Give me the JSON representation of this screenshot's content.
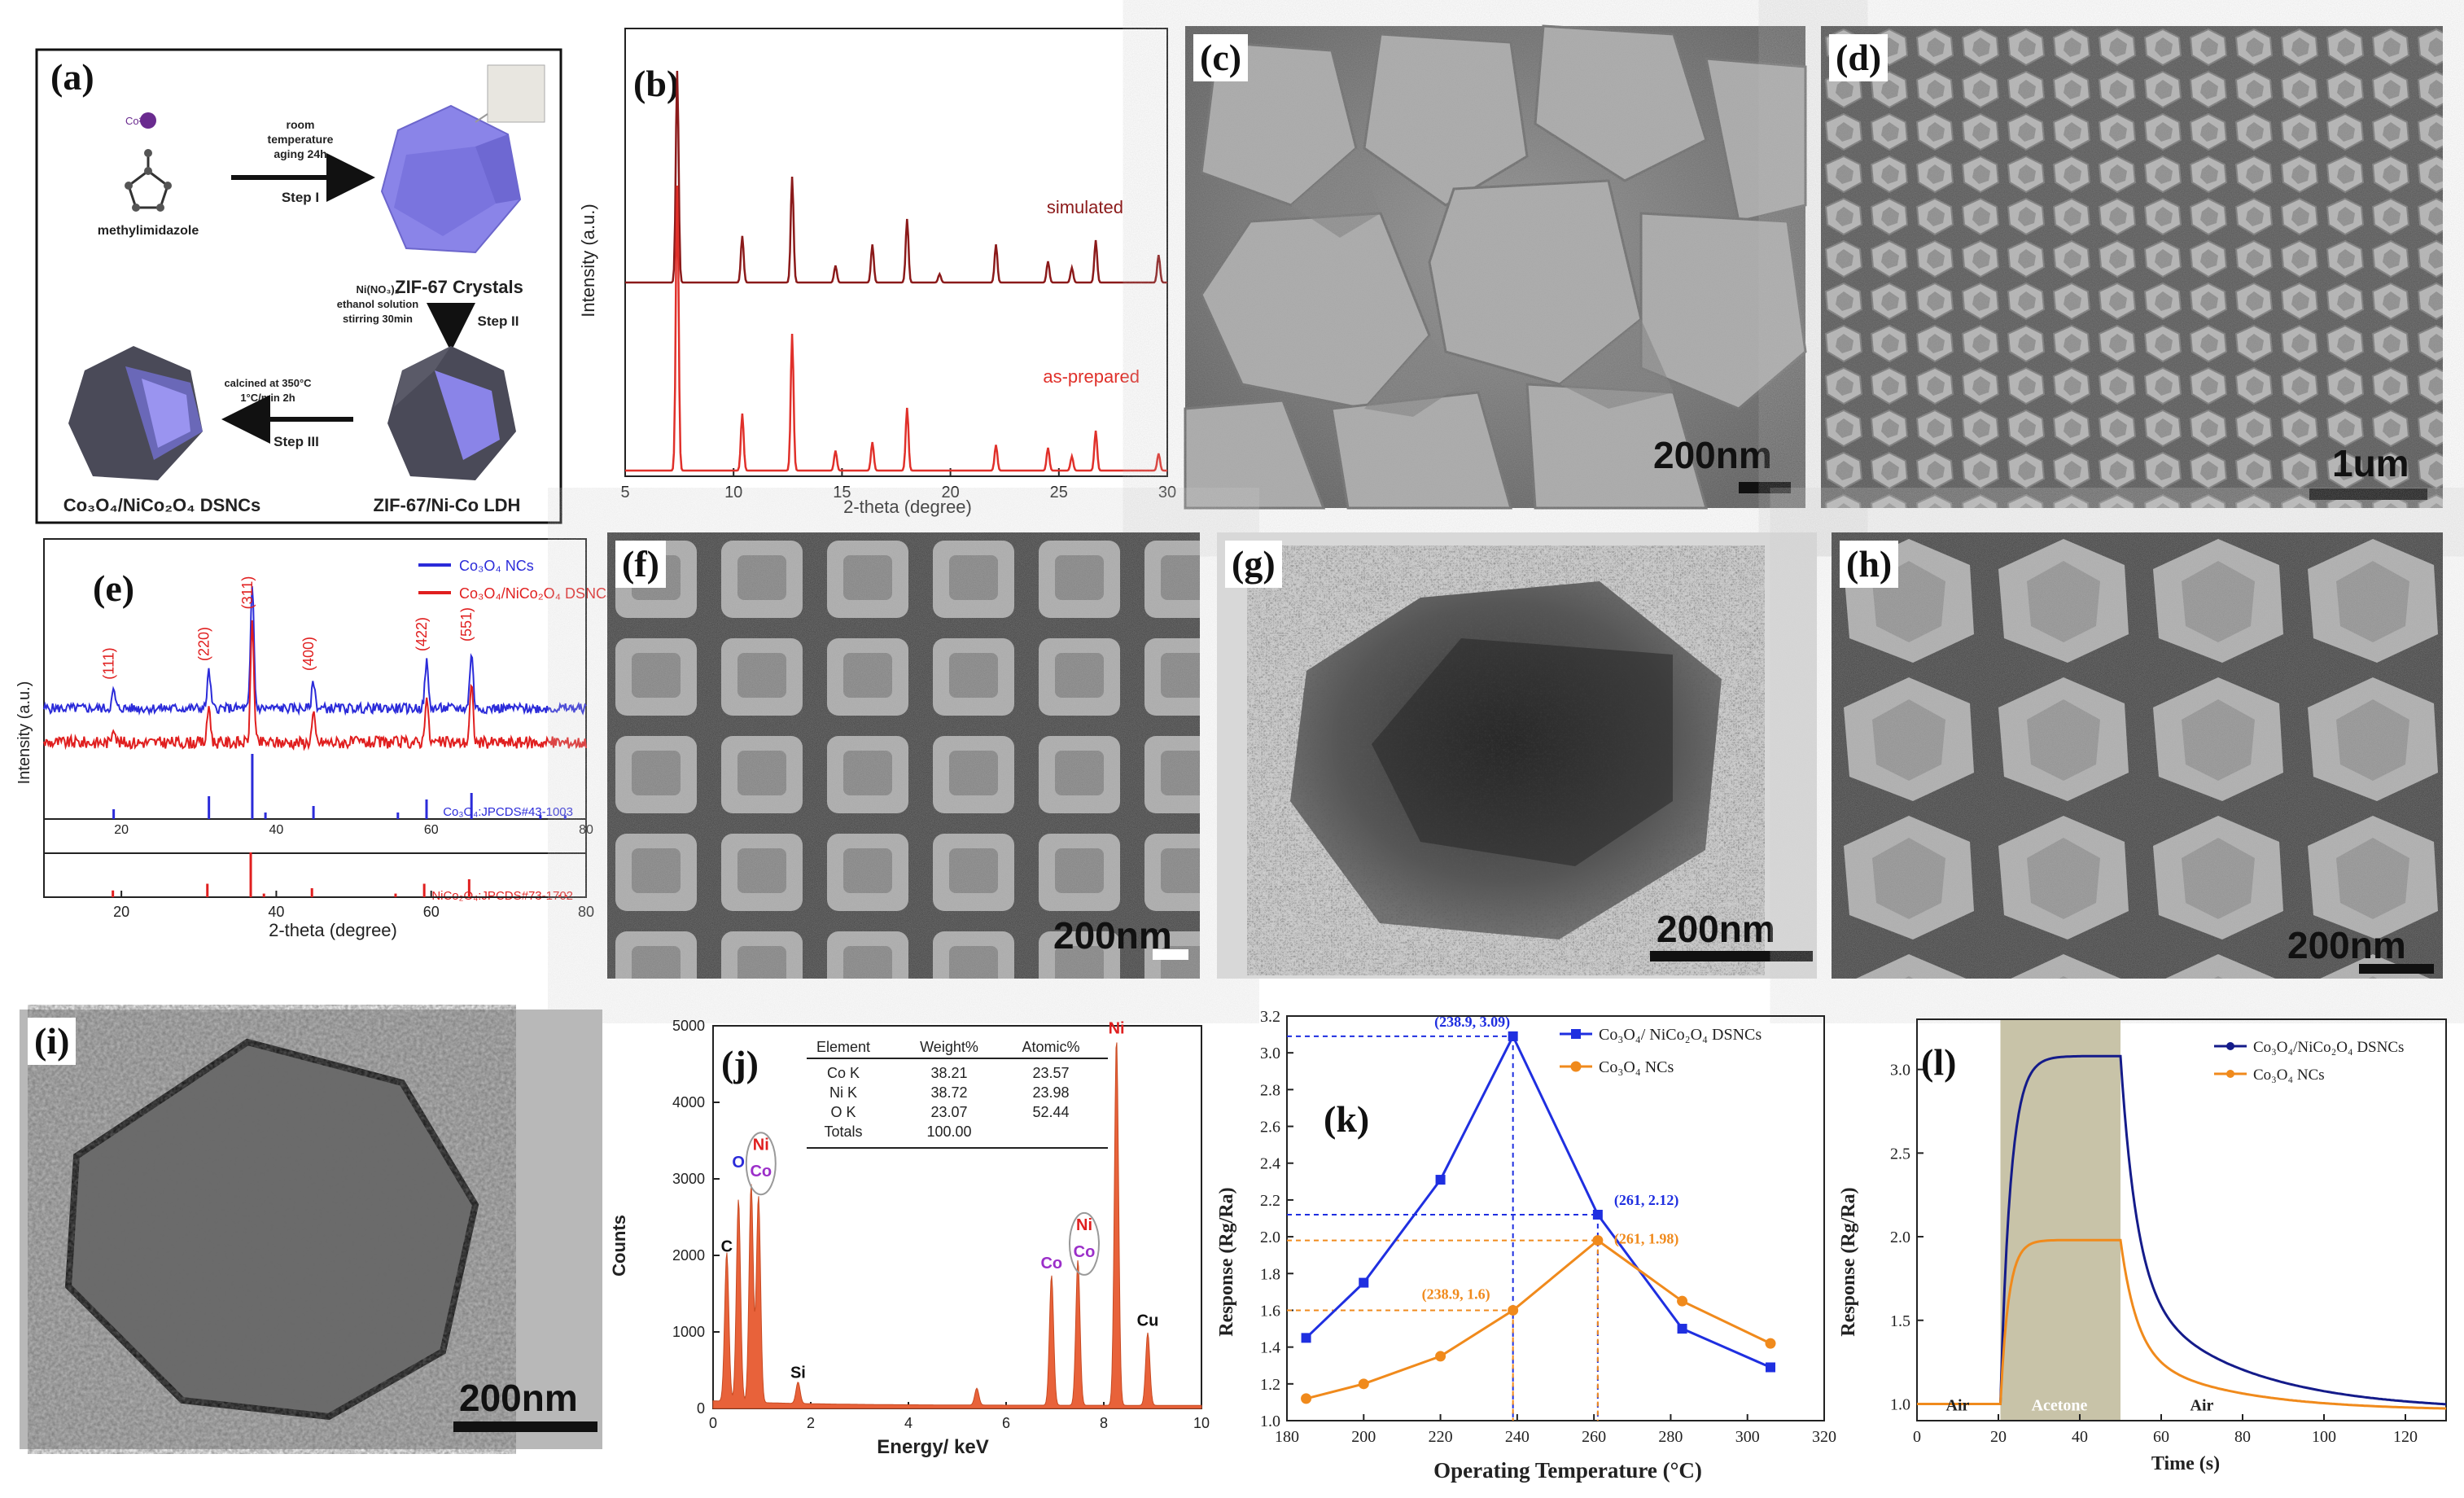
{
  "labels": [
    "(a)",
    "(b)",
    "(c)",
    "(d)",
    "(e)",
    "(f)",
    "(g)",
    "(h)",
    "(i)",
    "(j)",
    "(k)",
    "(l)"
  ],
  "scheme": {
    "ion": "Co²⁺",
    "linker": "methylimidazole",
    "step1_cond1": "room",
    "step1_cond2": "temperature",
    "step1_cond3": "aging 24h",
    "step1": "Step I",
    "zif": "ZIF-67 Crystals",
    "step2_cond1": "Ni(NO₃)₂",
    "step2_cond2": "ethanol solution",
    "step2_cond3": "stirring 30min",
    "step2": "Step II",
    "step3_cond1": "calcined at 350°C",
    "step3_cond2": "1°C/min 2h",
    "step3": "Step III",
    "ldh": "ZIF-67/Ni-Co LDH",
    "dsnc": "Co₃O₄/NiCo₂O₄ DSNCs"
  },
  "sem": {
    "c_scale": "200nm",
    "d_scale": "1um",
    "f_scale": "200nm",
    "g_scale": "200nm",
    "h_scale": "200nm",
    "i_scale": "200nm"
  },
  "chart_b": {
    "type": "line",
    "xlabel": "2-theta (degree)",
    "ylabel": "Intensity (a.u.)",
    "xlim": [
      5,
      30
    ],
    "xticks": [
      5,
      10,
      15,
      20,
      25,
      30
    ],
    "series": [
      {
        "name": "simulated",
        "color": "#8b1a1a",
        "peaks": [
          [
            7.4,
            1.0
          ],
          [
            10.4,
            0.22
          ],
          [
            12.7,
            0.5
          ],
          [
            14.7,
            0.08
          ],
          [
            16.4,
            0.18
          ],
          [
            18.0,
            0.3
          ],
          [
            19.5,
            0.04
          ],
          [
            22.1,
            0.18
          ],
          [
            24.5,
            0.1
          ],
          [
            25.6,
            0.07
          ],
          [
            26.7,
            0.2
          ],
          [
            29.6,
            0.13
          ]
        ]
      },
      {
        "name": "as-prepared",
        "color": "#e0302a",
        "peaks": [
          [
            7.4,
            1.0
          ],
          [
            10.4,
            0.2
          ],
          [
            12.7,
            0.48
          ],
          [
            14.7,
            0.07
          ],
          [
            16.4,
            0.1
          ],
          [
            18.0,
            0.22
          ],
          [
            22.1,
            0.09
          ],
          [
            24.5,
            0.08
          ],
          [
            25.6,
            0.05
          ],
          [
            26.7,
            0.14
          ],
          [
            29.6,
            0.06
          ]
        ]
      }
    ]
  },
  "chart_e": {
    "type": "line",
    "xlabel": "2-theta (degree)",
    "ylabel": "Intensity (a.u.)",
    "xlim": [
      10,
      80
    ],
    "xticks": [
      20,
      40,
      60,
      80
    ],
    "legend": [
      "Co₃O₄ NCs",
      "Co₃O₄/NiCo₂O₄ DSNCs"
    ],
    "colors": [
      "#2b2bd9",
      "#e01f1f"
    ],
    "peak_labels": [
      {
        "x": 19,
        "text": "(111)"
      },
      {
        "x": 31.3,
        "text": "(220)"
      },
      {
        "x": 36.9,
        "text": "(311)"
      },
      {
        "x": 44.8,
        "text": "(400)"
      },
      {
        "x": 59.4,
        "text": "(422)"
      },
      {
        "x": 65.2,
        "text": "(551)"
      }
    ],
    "peaks": [
      [
        19,
        0.14
      ],
      [
        31.3,
        0.3
      ],
      [
        36.9,
        1.0
      ],
      [
        44.8,
        0.22
      ],
      [
        59.4,
        0.38
      ],
      [
        65.2,
        0.46
      ]
    ],
    "ref1": {
      "label": "Co₃O₄:JPCDS#43-1003",
      "sticks": [
        [
          19,
          0.15
        ],
        [
          31.3,
          0.35
        ],
        [
          36.9,
          1.0
        ],
        [
          38.6,
          0.1
        ],
        [
          44.8,
          0.2
        ],
        [
          55.7,
          0.1
        ],
        [
          59.4,
          0.3
        ],
        [
          65.2,
          0.4
        ],
        [
          74.1,
          0.06
        ],
        [
          77.3,
          0.06
        ]
      ]
    },
    "ref2": {
      "label": "NiCo₂O₄:JPCDS#73-1702",
      "sticks": [
        [
          18.9,
          0.15
        ],
        [
          31.1,
          0.3
        ],
        [
          36.7,
          1.0
        ],
        [
          38.4,
          0.08
        ],
        [
          44.6,
          0.2
        ],
        [
          55.4,
          0.08
        ],
        [
          59.1,
          0.3
        ],
        [
          64.9,
          0.4
        ],
        [
          76.6,
          0.05
        ],
        [
          77.4,
          0.05
        ]
      ]
    }
  },
  "chart_j": {
    "type": "bar",
    "xlabel": "Energy/ keV",
    "ylabel": "Counts",
    "xlim": [
      0,
      10
    ],
    "ylim": [
      0,
      5000
    ],
    "xticks": [
      0,
      2,
      4,
      6,
      8,
      10
    ],
    "yticks": [
      0,
      1000,
      2000,
      3000,
      4000,
      5000
    ],
    "peaks": [
      [
        0.28,
        1950
      ],
      [
        0.52,
        2650
      ],
      [
        0.78,
        2850
      ],
      [
        0.93,
        2700
      ],
      [
        1.74,
        280
      ],
      [
        5.4,
        220
      ],
      [
        6.93,
        1700
      ],
      [
        7.47,
        1900
      ],
      [
        8.26,
        4800
      ],
      [
        8.9,
        950
      ]
    ],
    "peak_labels": [
      {
        "text": "C",
        "x": 0.28,
        "y": 2050,
        "color": "#111111"
      },
      {
        "text": "O",
        "x": 0.52,
        "y": 3150,
        "color": "#2b2bd9"
      },
      {
        "text": "Ni",
        "x": 0.98,
        "y": 3380,
        "color": "#e01f1f"
      },
      {
        "text": "Co",
        "x": 0.98,
        "y": 3030,
        "color": "#9b2fc9"
      },
      {
        "text": "Si",
        "x": 1.74,
        "y": 400,
        "color": "#111111"
      },
      {
        "text": "Co",
        "x": 6.93,
        "y": 1830,
        "color": "#9b2fc9"
      },
      {
        "text": "Ni",
        "x": 7.6,
        "y": 2330,
        "color": "#e01f1f"
      },
      {
        "text": "Co",
        "x": 7.6,
        "y": 1980,
        "color": "#9b2fc9"
      },
      {
        "text": "Ni",
        "x": 8.26,
        "y": 4900,
        "color": "#e01f1f"
      },
      {
        "text": "Cu",
        "x": 8.9,
        "y": 1080,
        "color": "#111111"
      }
    ],
    "table": {
      "headers": [
        "Element",
        "Weight%",
        "Atomic%"
      ],
      "rows": [
        [
          "Co K",
          "38.21",
          "23.57"
        ],
        [
          "Ni K",
          "38.72",
          "23.98"
        ],
        [
          "O K",
          "23.07",
          "52.44"
        ],
        [
          "Totals",
          "100.00",
          ""
        ]
      ]
    }
  },
  "chart_k": {
    "type": "line",
    "xlabel": "Operating Temperature (°C)",
    "ylabel": "Response (Rg/Ra)",
    "xlim": [
      180,
      320
    ],
    "ylim": [
      1.0,
      3.2
    ],
    "xticks": [
      180,
      200,
      220,
      240,
      260,
      280,
      300,
      320
    ],
    "yticks": [
      1.0,
      1.2,
      1.4,
      1.6,
      1.8,
      2.0,
      2.2,
      2.4,
      2.6,
      2.8,
      3.0,
      3.2
    ],
    "x": [
      185,
      200,
      220,
      238.9,
      261,
      283,
      306
    ],
    "series": [
      {
        "name": "Co₃O₄/ NiCo₂O₄ DSNCs",
        "color": "#1f2fe0",
        "values": [
          1.45,
          1.75,
          2.31,
          3.09,
          2.12,
          1.5,
          1.29
        ]
      },
      {
        "name": "Co₃O₄ NCs",
        "color": "#f08a1c",
        "values": [
          1.12,
          1.2,
          1.35,
          1.6,
          1.98,
          1.65,
          1.42
        ]
      }
    ],
    "annotations": [
      {
        "text": "(238.9, 3.09)",
        "x": 238.9,
        "y": 3.09,
        "color": "#1f2fe0"
      },
      {
        "text": "(261, 2.12)",
        "x": 261,
        "y": 2.12,
        "color": "#1f2fe0"
      },
      {
        "text": "(261, 1.98)",
        "x": 261,
        "y": 1.98,
        "color": "#f08a1c"
      },
      {
        "text": "(238.9, 1.6)",
        "x": 238.9,
        "y": 1.6,
        "color": "#f08a1c"
      }
    ]
  },
  "chart_l": {
    "type": "line",
    "xlabel": "Time (s)",
    "ylabel": "Response (Rg/Ra)",
    "xlim": [
      0,
      130
    ],
    "ylim": [
      0.9,
      3.3
    ],
    "xticks": [
      0,
      20,
      40,
      60,
      80,
      100,
      120
    ],
    "yticks": [
      1.0,
      1.5,
      2.0,
      2.5,
      3.0
    ],
    "region": {
      "x0": 20.5,
      "x1": 50,
      "label": "Acetone"
    },
    "air_left": "Air",
    "air_right": "Air",
    "series": [
      {
        "name": "Co₃O₄/NiCo₂O₄ DSNCs",
        "color": "#141b8a",
        "max": 3.08
      },
      {
        "name": "Co₃O₄ NCs",
        "color": "#f08a1c",
        "max": 1.98
      }
    ]
  }
}
